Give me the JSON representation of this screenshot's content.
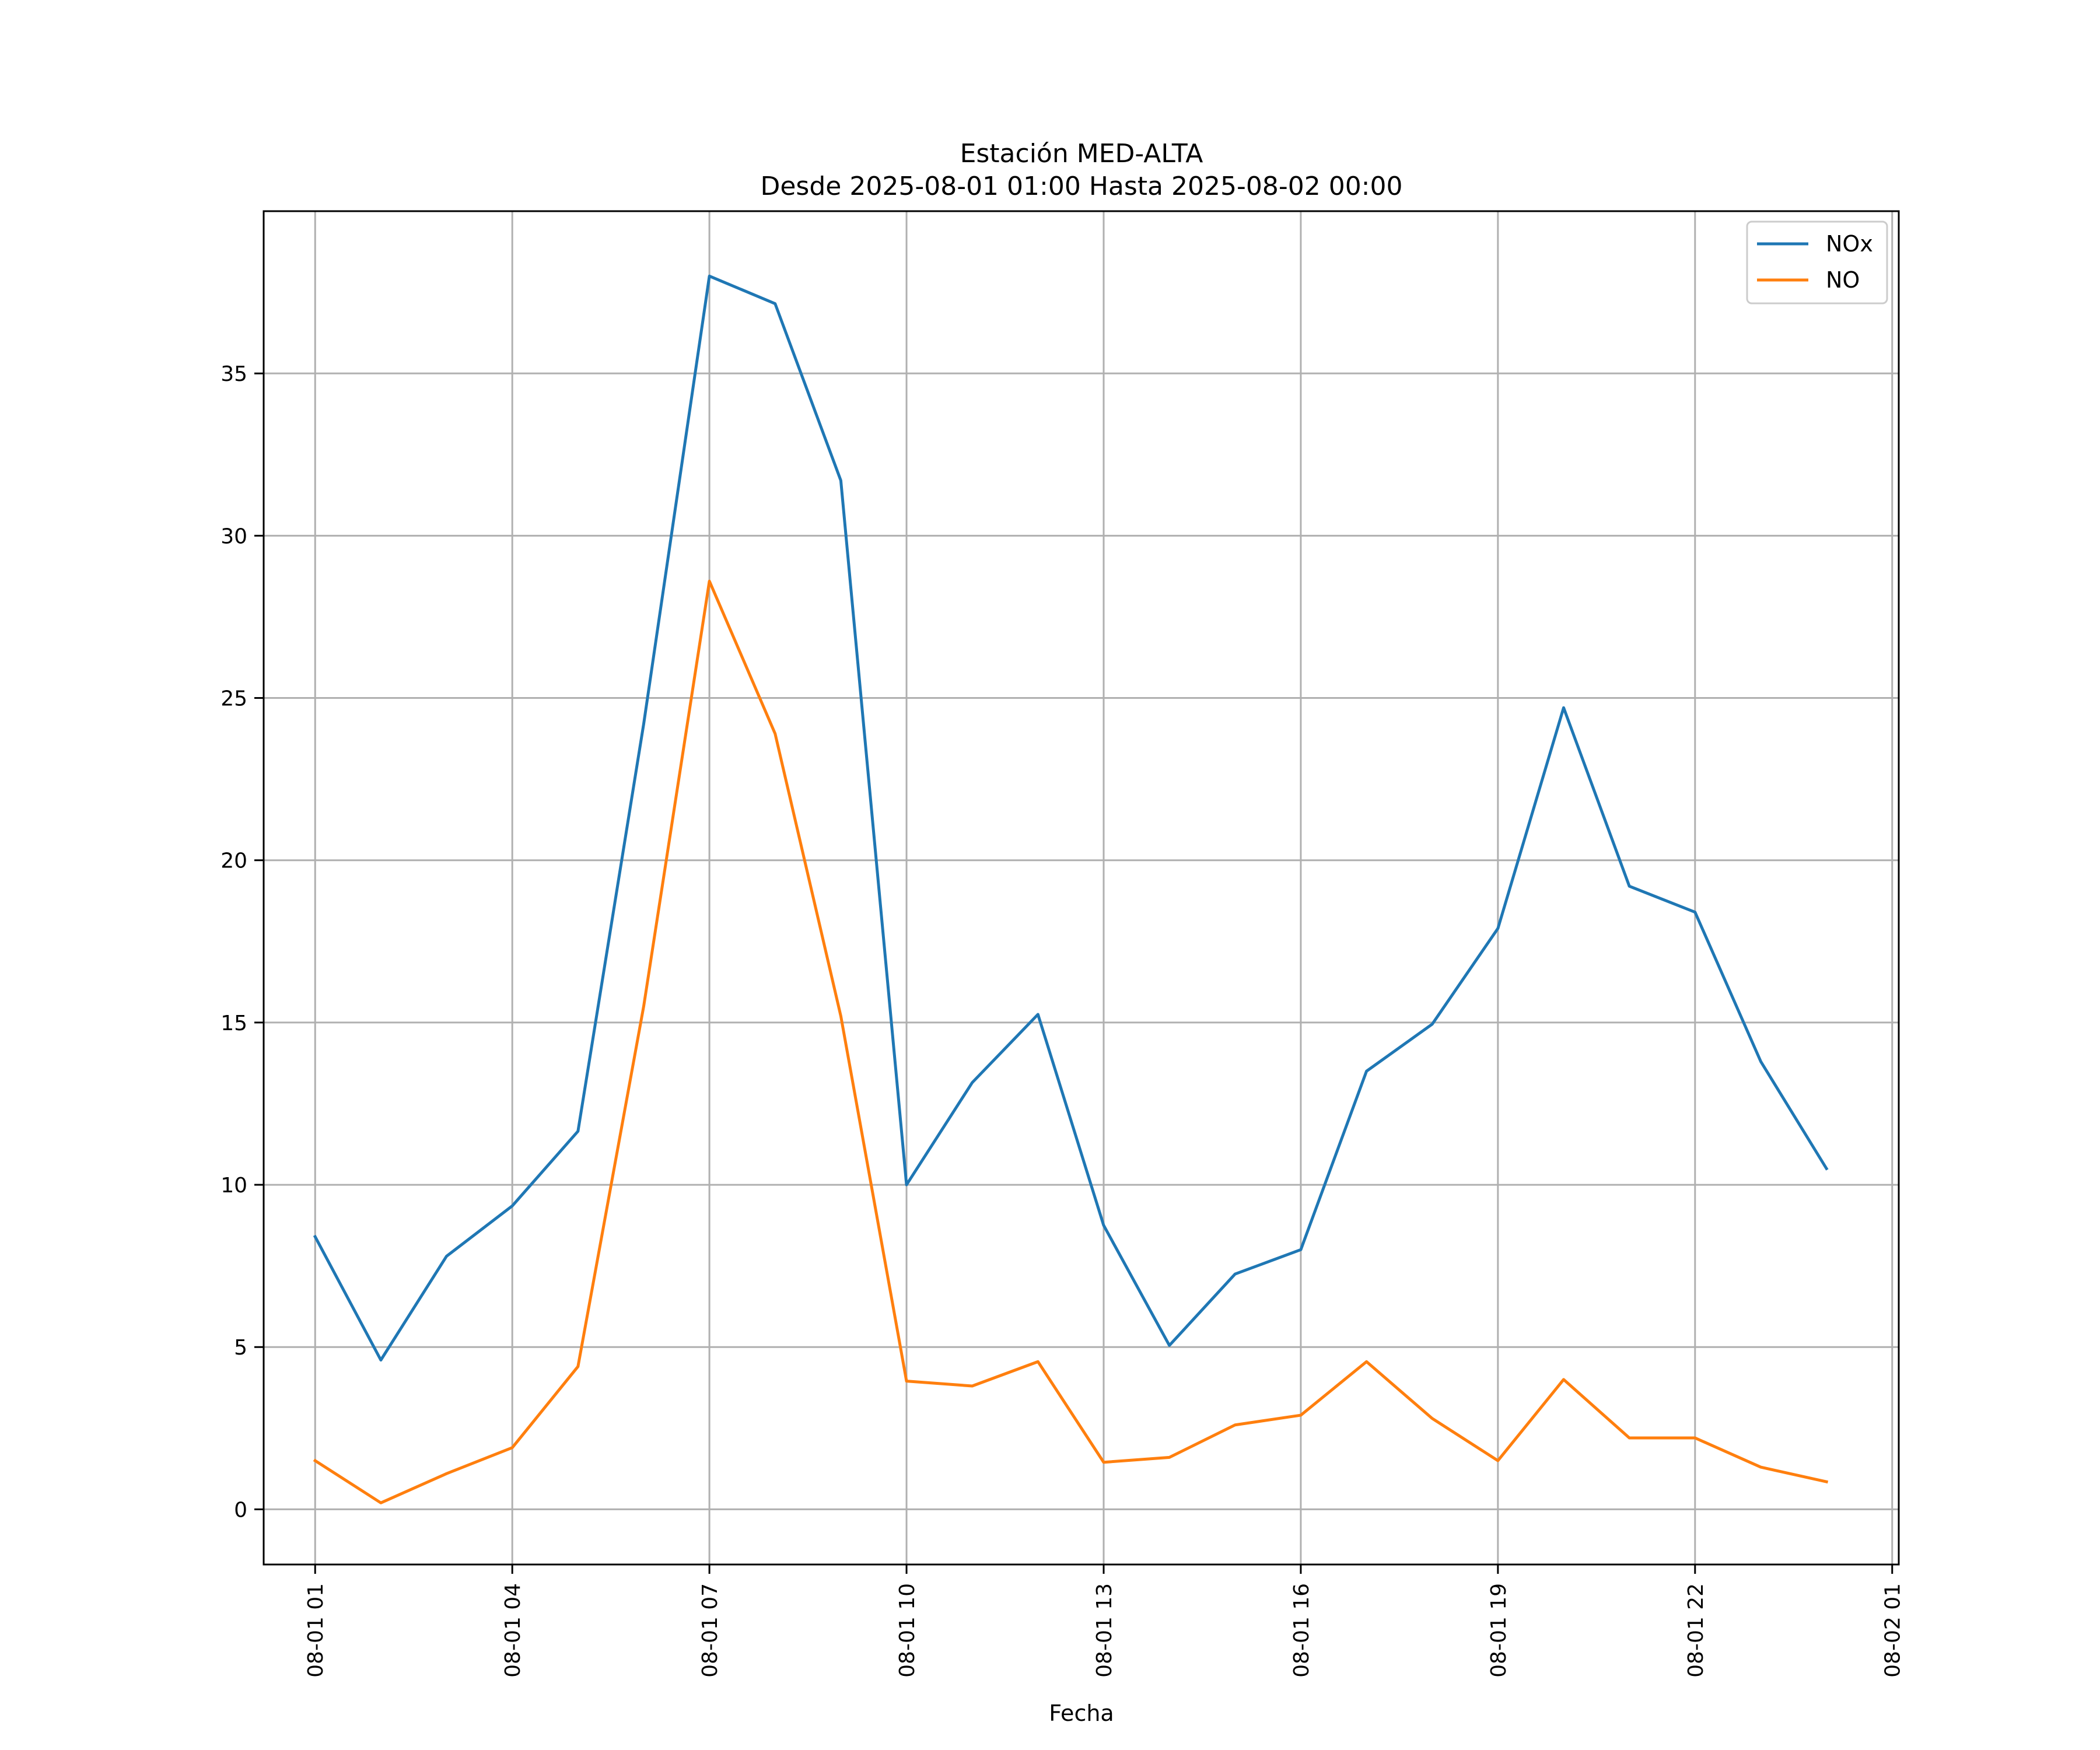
{
  "chart_data": {
    "type": "line",
    "title": "Estación MED-ALTA",
    "subtitle": "Desde 2025-08-01 01:00 Hasta 2025-08-02 00:00",
    "xlabel": "Fecha",
    "ylabel": "",
    "x": [
      "2025-08-01 01:00",
      "2025-08-01 02:00",
      "2025-08-01 03:00",
      "2025-08-01 04:00",
      "2025-08-01 05:00",
      "2025-08-01 06:00",
      "2025-08-01 07:00",
      "2025-08-01 08:00",
      "2025-08-01 09:00",
      "2025-08-01 10:00",
      "2025-08-01 11:00",
      "2025-08-01 12:00",
      "2025-08-01 13:00",
      "2025-08-01 14:00",
      "2025-08-01 15:00",
      "2025-08-01 16:00",
      "2025-08-01 17:00",
      "2025-08-01 18:00",
      "2025-08-01 19:00",
      "2025-08-01 20:00",
      "2025-08-01 21:00",
      "2025-08-01 22:00",
      "2025-08-01 23:00",
      "2025-08-02 00:00"
    ],
    "xlim": [
      "2025-08-01 00:13",
      "2025-08-02 01:06"
    ],
    "ylim": [
      -1.7,
      40.0
    ],
    "x_ticks": [
      "2025-08-01 01:00",
      "2025-08-01 04:00",
      "2025-08-01 07:00",
      "2025-08-01 10:00",
      "2025-08-01 13:00",
      "2025-08-01 16:00",
      "2025-08-01 19:00",
      "2025-08-01 22:00",
      "2025-08-02 01:00"
    ],
    "x_tick_labels": [
      "08-01 01",
      "08-01 04",
      "08-01 07",
      "08-01 10",
      "08-01 13",
      "08-01 16",
      "08-01 19",
      "08-01 22",
      "08-02 01"
    ],
    "y_ticks": [
      0,
      5,
      10,
      15,
      20,
      25,
      30,
      35
    ],
    "y_tick_labels": [
      "0",
      "5",
      "10",
      "15",
      "20",
      "25",
      "30",
      "35"
    ],
    "grid": true,
    "legend_position": "top-right",
    "series": [
      {
        "name": "NOx",
        "color": "#1f77b4",
        "values": [
          8.4,
          4.6,
          7.8,
          9.35,
          11.65,
          24.2,
          38.0,
          37.15,
          31.7,
          10.0,
          13.15,
          15.25,
          8.75,
          5.05,
          7.25,
          8.0,
          13.5,
          14.95,
          17.9,
          24.7,
          19.2,
          18.4,
          13.8,
          10.5
        ]
      },
      {
        "name": "NO",
        "color": "#ff7f0e",
        "values": [
          1.5,
          0.2,
          1.1,
          1.9,
          4.4,
          15.5,
          28.6,
          23.9,
          15.2,
          3.95,
          3.8,
          4.55,
          1.45,
          1.6,
          2.6,
          2.9,
          4.55,
          2.8,
          1.5,
          4.0,
          2.2,
          2.2,
          1.3,
          0.85
        ]
      }
    ]
  }
}
